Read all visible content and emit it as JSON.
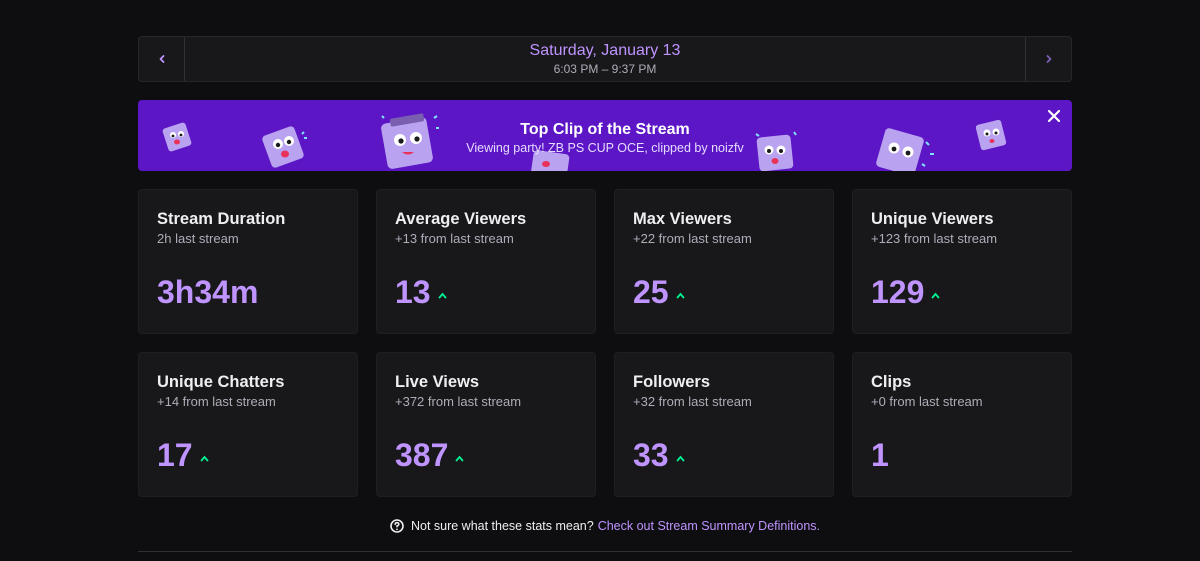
{
  "date_nav": {
    "date": "Saturday, January 13",
    "time_range": "6:03 PM – 9:37 PM",
    "prev_icon": "chevron-left-icon",
    "next_icon": "chevron-right-icon"
  },
  "banner": {
    "title": "Top Clip of the Stream",
    "subtitle": "Viewing party! ZB PS CUP OCE, clipped by noizfv",
    "close_icon": "close-icon",
    "background": "#5c16c5"
  },
  "stats": [
    {
      "title": "Stream Duration",
      "sub": "2h last stream",
      "value": "3h34m",
      "trend": "none"
    },
    {
      "title": "Average Viewers",
      "sub": "+13 from last stream",
      "value": "13",
      "trend": "up"
    },
    {
      "title": "Max Viewers",
      "sub": "+22 from last stream",
      "value": "25",
      "trend": "up"
    },
    {
      "title": "Unique Viewers",
      "sub": "+123 from last stream",
      "value": "129",
      "trend": "up"
    },
    {
      "title": "Unique Chatters",
      "sub": "+14 from last stream",
      "value": "17",
      "trend": "up"
    },
    {
      "title": "Live Views",
      "sub": "+372 from last stream",
      "value": "387",
      "trend": "up"
    },
    {
      "title": "Followers",
      "sub": "+32 from last stream",
      "value": "33",
      "trend": "up"
    },
    {
      "title": "Clips",
      "sub": "+0 from last stream",
      "value": "1",
      "trend": "none"
    }
  ],
  "help": {
    "text": "Not sure what these stats mean?",
    "link": "Check out Stream Summary Definitions",
    "link_suffix": ".",
    "icon": "question-circle-icon"
  },
  "colors": {
    "accent": "#bf94ff",
    "trend_up": "#00f593",
    "card_bg": "#18181b",
    "page_bg": "#0e0e10"
  }
}
